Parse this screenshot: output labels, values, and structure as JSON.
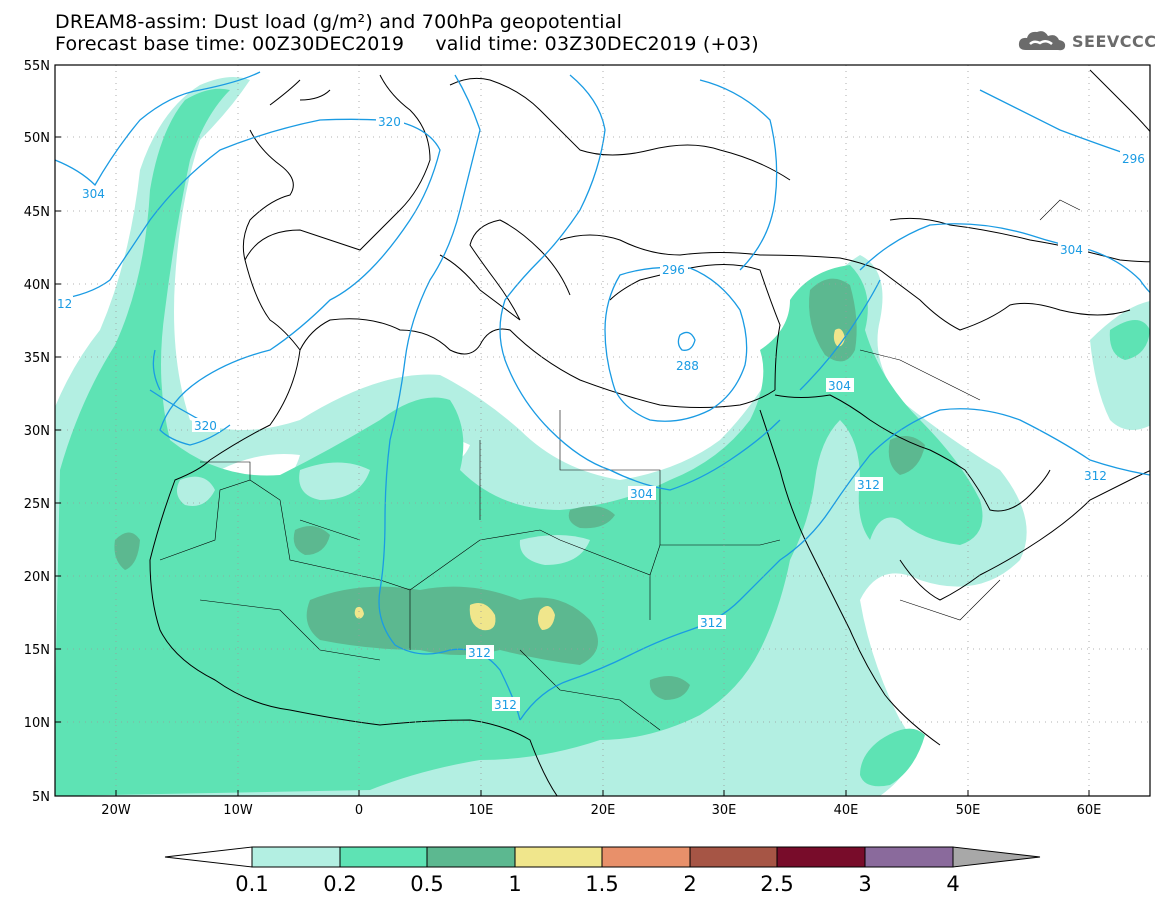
{
  "title": {
    "line1": "DREAM8-assim: Dust load (g/m²) and 700hPa geopotential",
    "line2": "Forecast base time: 00Z30DEC2019     valid time: 03Z30DEC2019 (+03)"
  },
  "logo": {
    "text": "SEEVCCC",
    "icon": "cloud-icon"
  },
  "map": {
    "lat_labels": [
      "55N",
      "50N",
      "45N",
      "40N",
      "35N",
      "30N",
      "25N",
      "20N",
      "15N",
      "10N",
      "5N"
    ],
    "lon_labels": [
      "20W",
      "10W",
      "0",
      "10E",
      "20E",
      "30E",
      "40E",
      "50E",
      "60E"
    ]
  },
  "contour_labels": [
    "320",
    "304",
    "12",
    "320",
    "296",
    "304",
    "296",
    "288",
    "304",
    "304",
    "312",
    "312",
    "312",
    "312",
    "312"
  ],
  "colorbar": {
    "labels": [
      "0.1",
      "0.2",
      "0.5",
      "1",
      "1.5",
      "2",
      "2.5",
      "3",
      "4"
    ],
    "colors": {
      "below": "#ffffff",
      "bins": [
        "#b3efe2",
        "#5ee3b4",
        "#5cb890",
        "#f0e68c",
        "#e8906a",
        "#a65545",
        "#780c2a",
        "#8a6a9c"
      ],
      "above": "#a8a8a8"
    }
  },
  "colors": {
    "contour": "#1a9be3",
    "coast": "#000000",
    "grid": "#9a9a9a"
  }
}
